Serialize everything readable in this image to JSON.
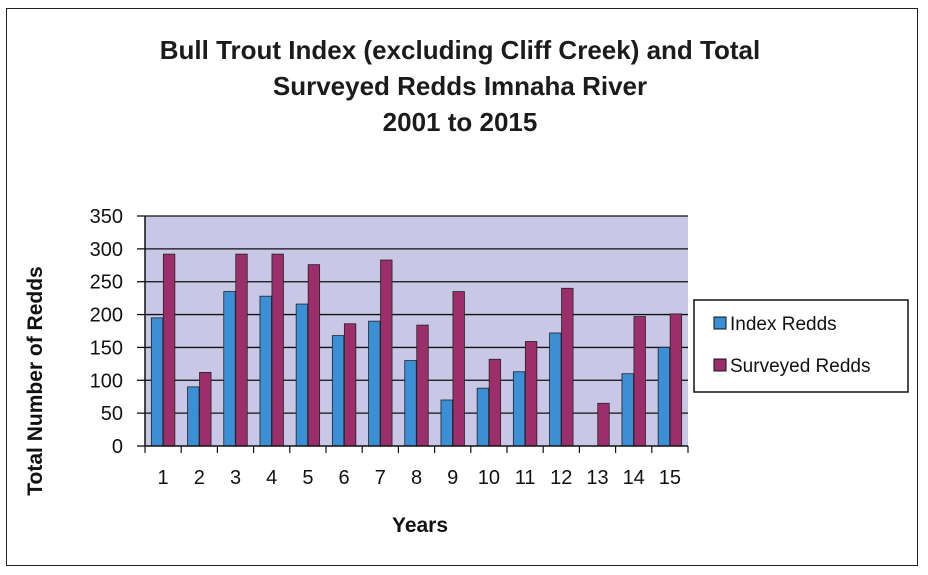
{
  "chart_data": {
    "type": "bar",
    "title_lines": [
      "Bull Trout Index (excluding Cliff Creek) and Total",
      "Surveyed Redds Imnaha River",
      "2001 to 2015"
    ],
    "xlabel": "Years",
    "ylabel": "Total Number of Redds",
    "ylim": [
      0,
      350
    ],
    "yticks": [
      0,
      50,
      100,
      150,
      200,
      250,
      300,
      350
    ],
    "grid": true,
    "legend_position": "right",
    "categories": [
      "1",
      "2",
      "3",
      "4",
      "5",
      "6",
      "7",
      "8",
      "9",
      "10",
      "11",
      "12",
      "13",
      "14",
      "15"
    ],
    "series": [
      {
        "name": "Index Redds",
        "color": "#3b8fd4",
        "values": [
          195,
          90,
          235,
          228,
          216,
          168,
          190,
          130,
          70,
          88,
          113,
          172,
          0,
          110,
          150
        ]
      },
      {
        "name": "Surveyed Redds",
        "color": "#9c2f6b",
        "values": [
          292,
          112,
          292,
          292,
          276,
          186,
          283,
          184,
          235,
          132,
          159,
          240,
          65,
          197,
          201
        ]
      }
    ],
    "plot_background": "#c8c8e6",
    "grid_color": "#111111"
  }
}
